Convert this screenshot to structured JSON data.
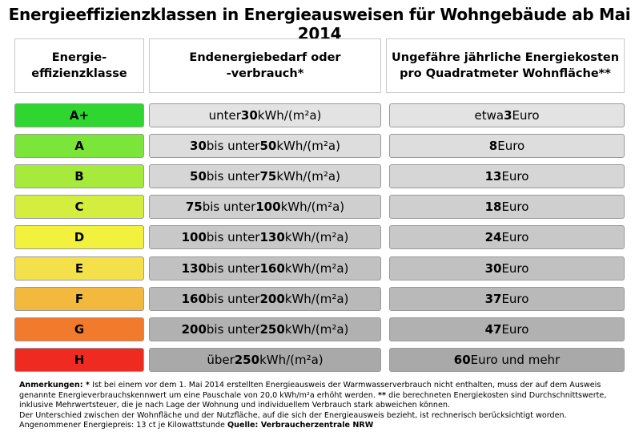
{
  "title": "Energieeffizienzklassen in Energieausweisen für Wohngebäude ab Mai 2014",
  "headers": {
    "col1": [
      "Energie-",
      "effizienzklasse"
    ],
    "col2": [
      "Endenergiebedarf oder",
      "-verbrauch*"
    ],
    "col3": [
      "Ungefähre jährliche Energiekosten",
      "pro Quadratmeter Wohnfläche**"
    ]
  },
  "unit": "kWh/(m²a)",
  "rows": [
    {
      "class": "A+",
      "color": "#2fd62f",
      "demand_parts": [
        {
          "t": "unter ",
          "b": false
        },
        {
          "t": "30",
          "b": true
        },
        {
          "t": " kWh/(m²a)",
          "b": false
        }
      ],
      "cost_parts": [
        {
          "t": "etwa ",
          "b": false
        },
        {
          "t": "3",
          "b": true
        },
        {
          "t": " Euro",
          "b": false
        }
      ],
      "bg": "#e3e3e3"
    },
    {
      "class": "A",
      "color": "#7ce53a",
      "demand_parts": [
        {
          "t": "30",
          "b": true
        },
        {
          "t": " bis unter ",
          "b": false
        },
        {
          "t": "50",
          "b": true
        },
        {
          "t": " kWh/(m²a)",
          "b": false
        }
      ],
      "cost_parts": [
        {
          "t": "8",
          "b": true
        },
        {
          "t": " Euro",
          "b": false
        }
      ],
      "bg": "#dddddd"
    },
    {
      "class": "B",
      "color": "#a6ea3c",
      "demand_parts": [
        {
          "t": "50",
          "b": true
        },
        {
          "t": " bis unter ",
          "b": false
        },
        {
          "t": "75",
          "b": true
        },
        {
          "t": " kWh/(m²a)",
          "b": false
        }
      ],
      "cost_parts": [
        {
          "t": "13",
          "b": true
        },
        {
          "t": " Euro",
          "b": false
        }
      ],
      "bg": "#d6d6d6"
    },
    {
      "class": "C",
      "color": "#d3ee3e",
      "demand_parts": [
        {
          "t": "75",
          "b": true
        },
        {
          "t": " bis unter ",
          "b": false
        },
        {
          "t": "100",
          "b": true
        },
        {
          "t": " kWh/(m²a)",
          "b": false
        }
      ],
      "cost_parts": [
        {
          "t": "18",
          "b": true
        },
        {
          "t": " Euro",
          "b": false
        }
      ],
      "bg": "#cfcfcf"
    },
    {
      "class": "D",
      "color": "#f1f13e",
      "demand_parts": [
        {
          "t": "100",
          "b": true
        },
        {
          "t": " bis unter ",
          "b": false
        },
        {
          "t": "130",
          "b": true
        },
        {
          "t": " kWh/(m²a)",
          "b": false
        }
      ],
      "cost_parts": [
        {
          "t": "24",
          "b": true
        },
        {
          "t": " Euro",
          "b": false
        }
      ],
      "bg": "#c8c8c8"
    },
    {
      "class": "E",
      "color": "#f4e04a",
      "demand_parts": [
        {
          "t": "130",
          "b": true
        },
        {
          "t": " bis unter ",
          "b": false
        },
        {
          "t": "160",
          "b": true
        },
        {
          "t": " kWh/(m²a)",
          "b": false
        }
      ],
      "cost_parts": [
        {
          "t": "30",
          "b": true
        },
        {
          "t": " Euro",
          "b": false
        }
      ],
      "bg": "#c1c1c1"
    },
    {
      "class": "F",
      "color": "#f2b93e",
      "demand_parts": [
        {
          "t": "160",
          "b": true
        },
        {
          "t": " bis unter ",
          "b": false
        },
        {
          "t": "200",
          "b": true
        },
        {
          "t": " kWh/(m²a)",
          "b": false
        }
      ],
      "cost_parts": [
        {
          "t": "37",
          "b": true
        },
        {
          "t": " Euro",
          "b": false
        }
      ],
      "bg": "#b9b9b9"
    },
    {
      "class": "G",
      "color": "#f17a2c",
      "demand_parts": [
        {
          "t": "200",
          "b": true
        },
        {
          "t": " bis unter ",
          "b": false
        },
        {
          "t": "250",
          "b": true
        },
        {
          "t": " kWh/(m²a)",
          "b": false
        }
      ],
      "cost_parts": [
        {
          "t": "47",
          "b": true
        },
        {
          "t": " Euro",
          "b": false
        }
      ],
      "bg": "#b1b1b1"
    },
    {
      "class": "H",
      "color": "#ef2a20",
      "demand_parts": [
        {
          "t": "über ",
          "b": false
        },
        {
          "t": "250",
          "b": true
        },
        {
          "t": " kWh/(m²a)",
          "b": false
        }
      ],
      "cost_parts": [
        {
          "t": "60",
          "b": true
        },
        {
          "t": " Euro und mehr",
          "b": false
        }
      ],
      "bg": "#a9a9a9"
    }
  ],
  "notes": [
    [
      {
        "t": "Anmerkungen: * ",
        "b": true
      },
      {
        "t": "Ist bei einem vor dem 1. Mai 2014 erstellten Energieausweis der Warmwasserverbrauch nicht enthalten, muss der auf dem Ausweis",
        "b": false
      }
    ],
    [
      {
        "t": "genannte Energieverbrauchskennwert um eine Pauschale von 20,0 kWh/m²a erhöht werden.  ",
        "b": false
      },
      {
        "t": "**",
        "b": true
      },
      {
        "t": " die berechneten Energiekosten sind Durchschnittswerte,",
        "b": false
      }
    ],
    [
      {
        "t": "inklusive Mehrwertsteuer, die je nach Lage der Wohnung und individuellem Verbrauch stark abweichen können.",
        "b": false
      }
    ],
    [
      {
        "t": "Der Unterschied zwischen der Wohnfläche und der Nutzfläche, auf die sich der Energieausweis bezieht, ist rechnerisch berücksichtigt worden.",
        "b": false
      }
    ],
    [
      {
        "t": "Angenommener Energiepreis: 13 ct je Kilowattstunde  ",
        "b": false
      },
      {
        "t": "Quelle: Verbraucherzentrale NRW",
        "b": true
      }
    ]
  ]
}
